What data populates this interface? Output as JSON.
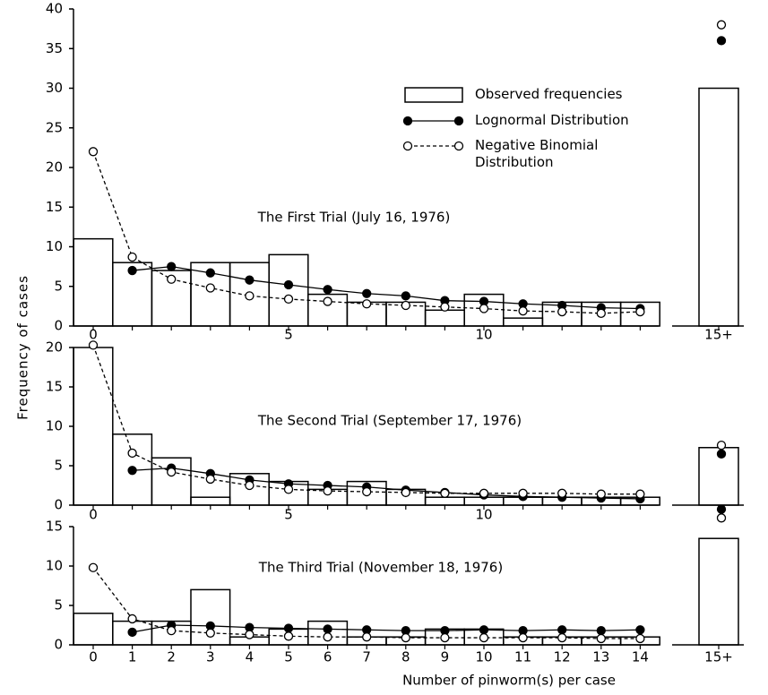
{
  "chart_data": [
    {
      "type": "bar",
      "title": "The First Trial (July 16, 1976)",
      "categories": [
        "0",
        null,
        null,
        null,
        null,
        "5",
        null,
        null,
        null,
        null,
        "10",
        null,
        null,
        null,
        null,
        "15+"
      ],
      "ylim": [
        0,
        40
      ],
      "yticks": [
        0,
        5,
        10,
        15,
        20,
        25,
        30,
        35,
        40
      ],
      "series": [
        {
          "name": "Observed frequencies",
          "style": "bar",
          "color": "#000000",
          "values": [
            11,
            8,
            7,
            8,
            8,
            9,
            4,
            3,
            3,
            2,
            4,
            1,
            3,
            3,
            3,
            30
          ]
        },
        {
          "name": "Lognormal Distribution",
          "style": "line",
          "marker": "filled",
          "dashed": false,
          "color": "#000000",
          "values": [
            null,
            7,
            7.5,
            6.7,
            5.8,
            5.2,
            4.6,
            4.1,
            3.8,
            3.2,
            3.1,
            2.8,
            2.6,
            2.3,
            2.2,
            36
          ]
        },
        {
          "name": "Negative Binomial Distribution",
          "style": "line",
          "marker": "open",
          "dashed": true,
          "color": "#000000",
          "values": [
            22,
            8.7,
            5.9,
            4.8,
            3.8,
            3.4,
            3.1,
            2.8,
            2.6,
            2.4,
            2.2,
            1.9,
            1.8,
            1.6,
            1.8,
            38
          ]
        }
      ],
      "legend": true
    },
    {
      "type": "bar",
      "title": "The Second Trial (September 17, 1976)",
      "ylabel": "Frequency of cases",
      "categories": [
        "0",
        null,
        null,
        null,
        null,
        "5",
        null,
        null,
        null,
        null,
        "10",
        null,
        null,
        null,
        null,
        null
      ],
      "ylim": [
        0,
        20
      ],
      "yticks": [
        0,
        5,
        10,
        15,
        20
      ],
      "series": [
        {
          "style": "bar",
          "color": "#000000",
          "values": [
            20,
            9,
            6,
            1,
            4,
            3,
            2,
            3,
            2,
            1,
            1,
            1,
            1,
            1,
            1,
            7.3
          ]
        },
        {
          "style": "line",
          "marker": "filled",
          "dashed": false,
          "color": "#000000",
          "values": [
            null,
            4.4,
            4.7,
            4.0,
            3.2,
            2.7,
            2.5,
            2.3,
            1.9,
            1.6,
            1.3,
            1.1,
            1.0,
            0.9,
            0.8,
            6.5
          ]
        },
        {
          "style": "line",
          "marker": "open",
          "dashed": true,
          "color": "#000000",
          "values": [
            20.3,
            6.6,
            4.2,
            3.3,
            2.5,
            2.0,
            1.8,
            1.7,
            1.6,
            1.5,
            1.5,
            1.5,
            1.5,
            1.4,
            1.4,
            7.6
          ]
        }
      ]
    },
    {
      "type": "bar",
      "title": "The Third Trial (November 18, 1976)",
      "xlabel": "Number of pinworm(s) per case",
      "categories": [
        "0",
        "1",
        "2",
        "3",
        "4",
        "5",
        "6",
        "7",
        "8",
        "9",
        "10",
        "11",
        "12",
        "13",
        "14",
        "15+"
      ],
      "ylim": [
        0,
        15
      ],
      "yticks": [
        0,
        5,
        10,
        15
      ],
      "series": [
        {
          "style": "bar",
          "color": "#000000",
          "values": [
            4,
            3,
            3,
            7,
            1,
            2,
            3,
            1,
            1,
            2,
            2,
            1,
            1,
            1,
            1,
            13.5
          ]
        },
        {
          "style": "line",
          "marker": "filled",
          "dashed": false,
          "color": "#000000",
          "values": [
            null,
            1.6,
            2.5,
            2.4,
            2.2,
            2.1,
            2.0,
            1.9,
            1.8,
            1.8,
            1.9,
            1.8,
            1.9,
            1.8,
            1.9,
            17.2
          ]
        },
        {
          "style": "line",
          "marker": "open",
          "dashed": true,
          "color": "#000000",
          "values": [
            9.8,
            3.3,
            1.8,
            1.5,
            1.3,
            1.1,
            1.0,
            1.0,
            0.9,
            0.9,
            0.9,
            0.9,
            0.9,
            0.8,
            0.8,
            16.1
          ]
        }
      ]
    }
  ]
}
